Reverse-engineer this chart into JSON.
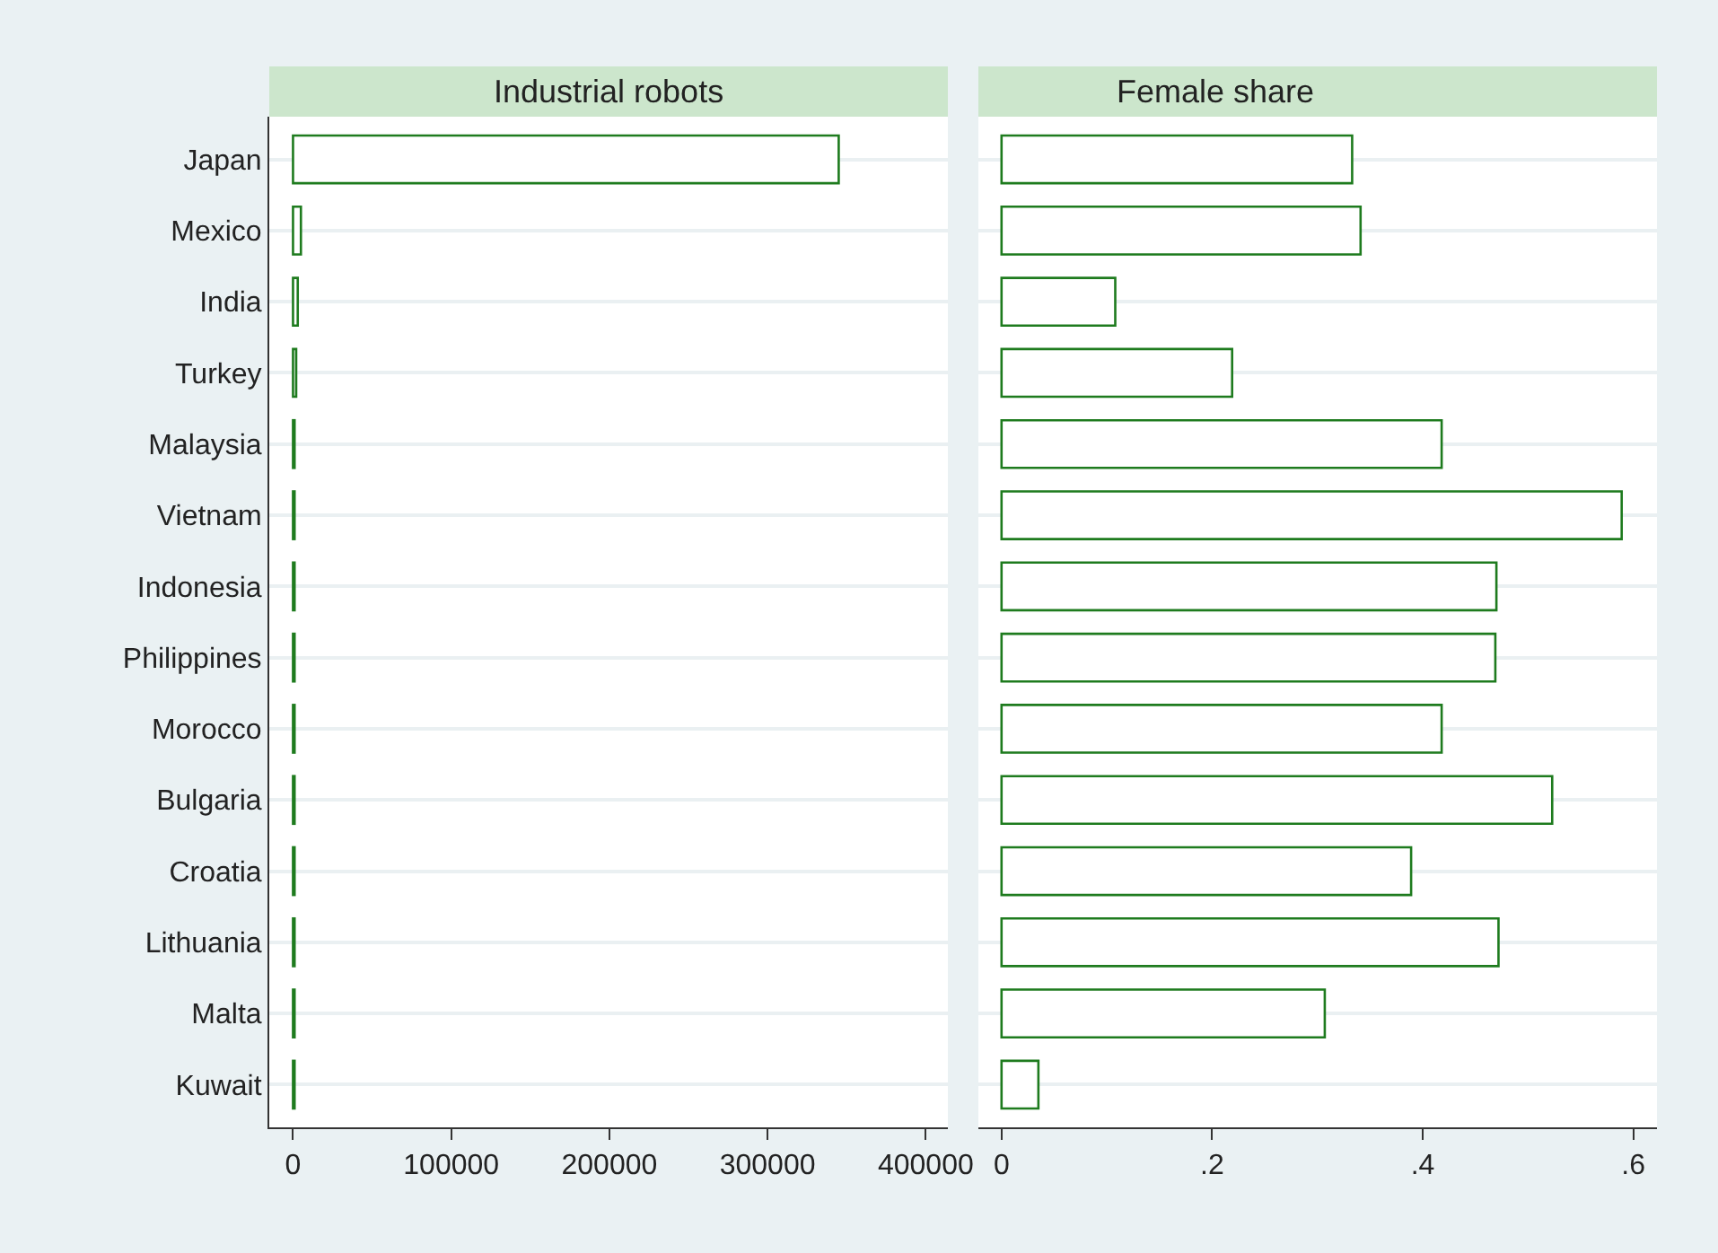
{
  "chart_data": [
    {
      "type": "bar",
      "orientation": "horizontal",
      "title": "Industrial robots",
      "categories": [
        "Japan",
        "Mexico",
        "India",
        "Turkey",
        "Malaysia",
        "Vietnam",
        "Indonesia",
        "Philippines",
        "Morocco",
        "Bulgaria",
        "Croatia",
        "Lithuania",
        "Malta",
        "Kuwait"
      ],
      "values": [
        345000,
        5000,
        3000,
        2000,
        1000,
        1000,
        1000,
        1000,
        1000,
        1000,
        1000,
        1000,
        1000,
        1000
      ],
      "color": "#1e7b1e",
      "xlim": [
        -15000,
        414000
      ],
      "xticks": [
        0,
        100000,
        200000,
        300000,
        400000
      ],
      "grid": "y"
    },
    {
      "type": "bar",
      "orientation": "horizontal",
      "title": "Female share",
      "categories": [
        "Japan",
        "Mexico",
        "India",
        "Turkey",
        "Malaysia",
        "Vietnam",
        "Indonesia",
        "Philippines",
        "Morocco",
        "Bulgaria",
        "Croatia",
        "Lithuania",
        "Malta",
        "Kuwait"
      ],
      "values": [
        0.333,
        0.341,
        0.108,
        0.219,
        0.418,
        0.589,
        0.47,
        0.469,
        0.418,
        0.523,
        0.389,
        0.472,
        0.307,
        0.035
      ],
      "color": "#1e7b1e",
      "xlim": [
        -0.022,
        0.6225
      ],
      "xticks": [
        0,
        {
          "value": 0.2,
          "label": ".2"
        },
        {
          "value": 0.4,
          "label": ".4"
        },
        {
          "value": 0.6,
          "label": ".6"
        }
      ],
      "grid": "y",
      "tick_labels": "x"
    }
  ]
}
